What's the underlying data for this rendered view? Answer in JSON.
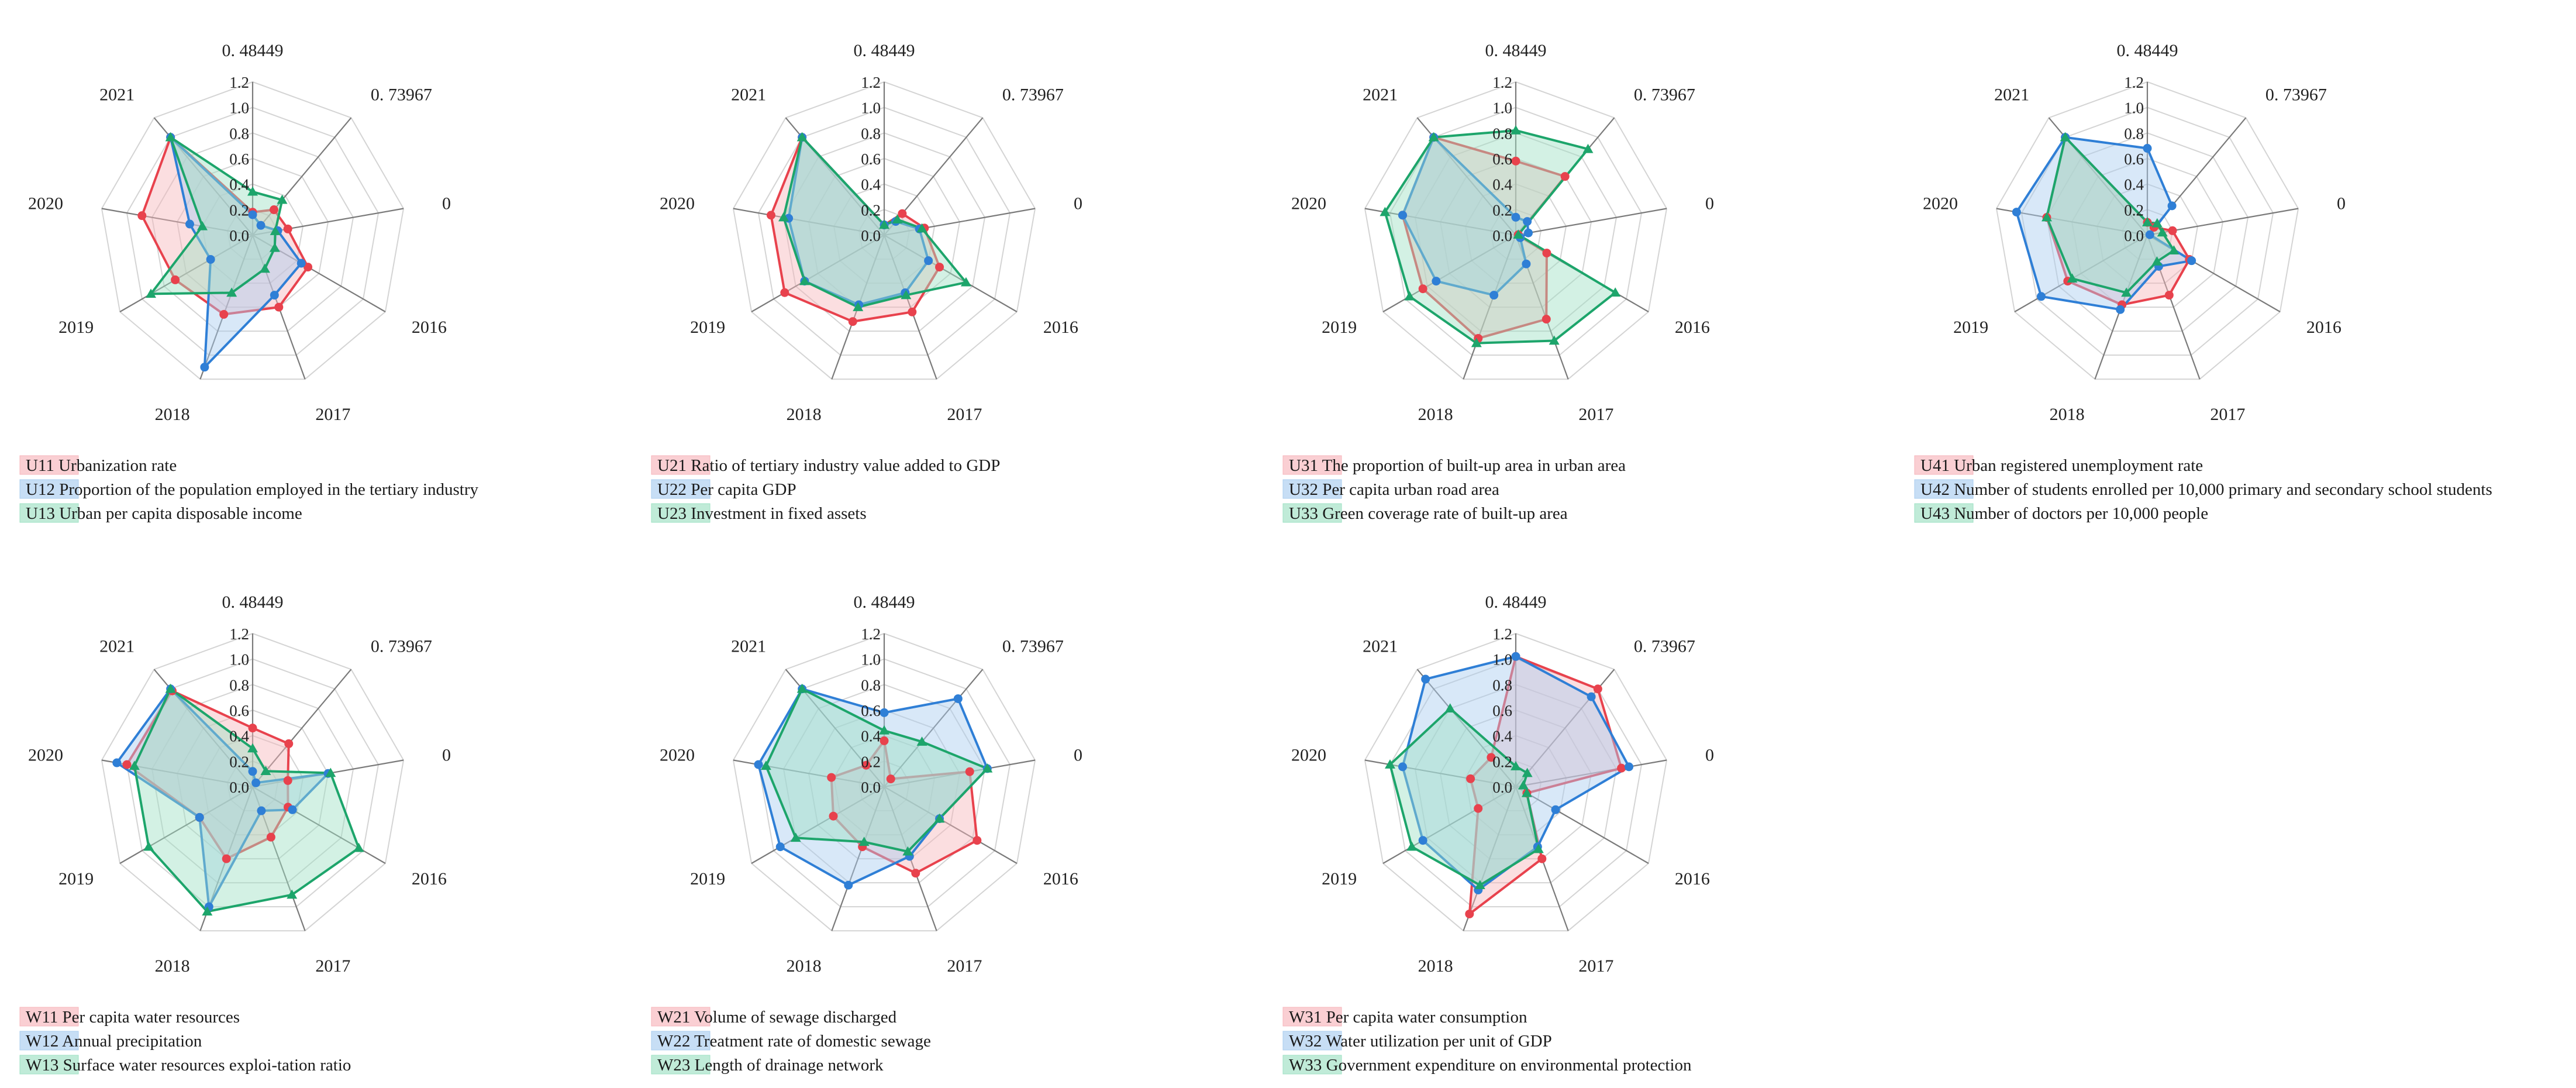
{
  "figure": {
    "axis_labels": [
      "0. 48449",
      "0. 73967",
      "0",
      "2016",
      "2017",
      "2018",
      "2019",
      "2020",
      "2021"
    ],
    "radial_ticks": [
      "1.2",
      "1.0",
      "0.8",
      "0.6",
      "0.4",
      "0.2",
      "0.0"
    ],
    "series_colors": [
      "#e8424d",
      "#2f7fd6",
      "#1da56b"
    ],
    "series_fills": [
      "#f7b5bb",
      "#a9cdef",
      "#9ee0c3"
    ],
    "purple_color": "#b070e0"
  },
  "chart_data": [
    {
      "type": "radar",
      "title": "",
      "axes": [
        "0. 48449",
        "0. 73967",
        "0",
        "2016",
        "2017",
        "2018",
        "2019",
        "2020",
        "2021"
      ],
      "rlim": [
        0,
        1.2
      ],
      "series": [
        {
          "name": "U11 Urbanization rate",
          "values": [
            0.18,
            0.26,
            0.28,
            0.5,
            0.6,
            0.66,
            0.7,
            0.88,
            1.0
          ]
        },
        {
          "name": "U12 Proportion of the population employed in the tertiary industry",
          "values": [
            0.16,
            0.1,
            0.2,
            0.44,
            0.5,
            1.1,
            0.38,
            0.5,
            1.0
          ]
        },
        {
          "name": "U13 Urban per capita disposable income",
          "values": [
            0.34,
            0.36,
            0.18,
            0.2,
            0.28,
            0.48,
            0.92,
            0.4,
            1.0
          ]
        }
      ]
    },
    {
      "type": "radar",
      "title": "",
      "axes": [
        "0. 48449",
        "0. 73967",
        "0",
        "2016",
        "2017",
        "2018",
        "2019",
        "2020",
        "2021"
      ],
      "rlim": [
        0,
        1.2
      ],
      "series": [
        {
          "name": "U21 Ratio of tertiary industry value added to GDP",
          "values": [
            0.08,
            0.22,
            0.32,
            0.5,
            0.64,
            0.72,
            0.9,
            0.9,
            1.0
          ]
        },
        {
          "name": "U22 Per capita GDP",
          "values": [
            0.08,
            0.14,
            0.28,
            0.4,
            0.48,
            0.58,
            0.72,
            0.76,
            1.0
          ]
        },
        {
          "name": "U23 Investment in fixed assets",
          "values": [
            0.08,
            0.16,
            0.3,
            0.74,
            0.5,
            0.6,
            0.72,
            0.8,
            1.0
          ]
        }
      ]
    },
    {
      "type": "radar",
      "title": "",
      "axes": [
        "0. 48449",
        "0. 73967",
        "0",
        "2016",
        "2017",
        "2018",
        "2019",
        "2020",
        "2021"
      ],
      "rlim": [
        0,
        1.2
      ],
      "series": [
        {
          "name": "U31 The proportion of built-up area in urban area",
          "values": [
            0.58,
            0.6,
            0.02,
            0.28,
            0.7,
            0.86,
            0.84,
            0.9,
            1.0
          ]
        },
        {
          "name": "U32 Per capita urban road area",
          "values": [
            0.14,
            0.14,
            0.1,
            0.04,
            0.24,
            0.5,
            0.72,
            0.9,
            1.0
          ]
        },
        {
          "name": "U33 Green coverage rate of built-up area",
          "values": [
            0.82,
            0.88,
            0.02,
            0.9,
            0.88,
            0.9,
            0.96,
            1.04,
            1.0
          ]
        }
      ]
    },
    {
      "type": "radar",
      "title": "",
      "axes": [
        "0. 48449",
        "0. 73967",
        "0",
        "2016",
        "2017",
        "2018",
        "2019",
        "2020",
        "2021"
      ],
      "rlim": [
        0,
        1.2
      ],
      "series": [
        {
          "name": "U41 Urban registered unemployment rate",
          "values": [
            0.1,
            0.08,
            0.2,
            0.38,
            0.5,
            0.58,
            0.72,
            0.8,
            1.0
          ]
        },
        {
          "name": "U42 Number of students enrolled per 10,000 primary and secondary school students",
          "values": [
            0.68,
            0.3,
            0.02,
            0.4,
            0.26,
            0.62,
            0.96,
            1.04,
            1.0
          ]
        },
        {
          "name": "U43 Number of doctors per 10,000 people",
          "values": [
            0.1,
            0.12,
            0.12,
            0.24,
            0.22,
            0.48,
            0.68,
            0.8,
            1.0
          ]
        }
      ]
    },
    {
      "type": "radar",
      "title": "",
      "axes": [
        "0. 48449",
        "0. 73967",
        "0",
        "2016",
        "2017",
        "2018",
        "2019",
        "2020",
        "2021"
      ],
      "rlim": [
        0,
        1.2
      ],
      "series": [
        {
          "name": "W11 Per capita water resources",
          "values": [
            0.46,
            0.44,
            0.28,
            0.32,
            0.42,
            0.6,
            0.48,
            1.0,
            0.98
          ]
        },
        {
          "name": "W12 Annual precipitation",
          "values": [
            0.12,
            0.04,
            0.6,
            0.36,
            0.2,
            1.0,
            0.48,
            1.08,
            1.0
          ]
        },
        {
          "name": "W13 Surface water resources exploi-tation ratio",
          "values": [
            0.3,
            0.16,
            0.62,
            0.96,
            0.9,
            1.04,
            0.94,
            0.94,
            1.0
          ]
        }
      ]
    },
    {
      "type": "radar",
      "title": "",
      "axes": [
        "0. 48449",
        "0. 73967",
        "0",
        "2016",
        "2017",
        "2018",
        "2019",
        "2020",
        "2021"
      ],
      "rlim": [
        0,
        1.2
      ],
      "series": [
        {
          "name": "W21 Volume of sewage discharged",
          "values": [
            0.36,
            0.08,
            0.68,
            0.84,
            0.72,
            0.5,
            0.46,
            0.42,
            0.22
          ]
        },
        {
          "name": "W22 Treatment rate of domestic sewage",
          "values": [
            0.58,
            0.9,
            0.82,
            0.5,
            0.58,
            0.82,
            0.94,
            1.0,
            1.0
          ]
        },
        {
          "name": "W23 Length of drainage network",
          "values": [
            0.44,
            0.46,
            0.82,
            0.5,
            0.54,
            0.46,
            0.8,
            0.94,
            1.0
          ]
        }
      ]
    },
    {
      "type": "radar",
      "title": "",
      "axes": [
        "0. 48449",
        "0. 73967",
        "0",
        "2016",
        "2017",
        "2018",
        "2019",
        "2020",
        "2021"
      ],
      "rlim": [
        0,
        1.2
      ],
      "series": [
        {
          "name": "W31 Per capita water consumption",
          "values": [
            1.02,
            1.0,
            0.84,
            0.1,
            0.6,
            1.06,
            0.34,
            0.36,
            0.3
          ]
        },
        {
          "name": "W32 Water utilization per unit of GDP",
          "values": [
            1.02,
            0.92,
            0.9,
            0.36,
            0.5,
            0.86,
            0.84,
            0.9,
            1.1
          ]
        },
        {
          "name": "W33 Government expenditure on environmental protection",
          "values": [
            0.16,
            0.14,
            0.06,
            0.1,
            0.52,
            0.82,
            0.94,
            1.0,
            0.8
          ]
        }
      ]
    }
  ]
}
